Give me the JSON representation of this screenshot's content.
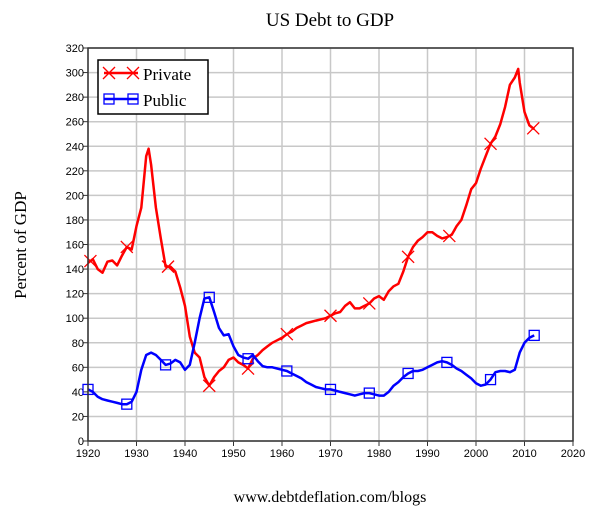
{
  "chart_data": {
    "type": "line",
    "title": "US Debt to GDP",
    "ylabel": "Percent of GDP",
    "xlabel": "www.debtdeflation.com/blogs",
    "xlim": [
      1920,
      2020
    ],
    "ylim": [
      0,
      320
    ],
    "xticks": [
      1920,
      1930,
      1940,
      1950,
      1960,
      1970,
      1980,
      1990,
      2000,
      2010,
      2020
    ],
    "yticks": [
      0,
      20,
      40,
      60,
      80,
      100,
      120,
      140,
      160,
      180,
      200,
      220,
      240,
      260,
      280,
      300,
      320
    ],
    "grid": true,
    "legend_position": "top-left",
    "series": [
      {
        "name": "Private",
        "color": "#ff0000",
        "marker": "x",
        "marker_years": [
          1920.5,
          1928,
          1936.5,
          1945,
          1953,
          1961,
          1970,
          1978,
          1986,
          1994.5,
          2003,
          2011.8
        ],
        "x": [
          1920,
          1921,
          1922,
          1923,
          1924,
          1925,
          1926,
          1927,
          1928,
          1929,
          1930,
          1931,
          1932,
          1932.5,
          1933,
          1934,
          1935,
          1936,
          1937,
          1938,
          1939,
          1940,
          1941,
          1942,
          1943,
          1944,
          1945,
          1946,
          1947,
          1948,
          1949,
          1950,
          1951,
          1952,
          1953,
          1954,
          1955,
          1956,
          1957,
          1958,
          1959,
          1960,
          1961,
          1962,
          1963,
          1964,
          1965,
          1966,
          1967,
          1968,
          1969,
          1970,
          1971,
          1972,
          1973,
          1974,
          1975,
          1976,
          1977,
          1978,
          1979,
          1980,
          1981,
          1982,
          1983,
          1984,
          1985,
          1986,
          1987,
          1988,
          1989,
          1990,
          1991,
          1992,
          1993,
          1994,
          1995,
          1996,
          1997,
          1998,
          1999,
          2000,
          2001,
          2002,
          2003,
          2004,
          2005,
          2006,
          2007,
          2008,
          2008.7,
          2009,
          2010,
          2011,
          2012
        ],
        "y": [
          145,
          148,
          140,
          137,
          146,
          147,
          143,
          151,
          158,
          156,
          175,
          190,
          232,
          238,
          225,
          190,
          165,
          142,
          142,
          138,
          125,
          110,
          85,
          72,
          68,
          52,
          45,
          52,
          57,
          60,
          66,
          68,
          64,
          62,
          59,
          67,
          70,
          74,
          77,
          80,
          82,
          84,
          87,
          89,
          92,
          94,
          96,
          97,
          98,
          99,
          100,
          102,
          104,
          105,
          110,
          113,
          108,
          108,
          110,
          112,
          116,
          118,
          115,
          122,
          126,
          128,
          138,
          150,
          158,
          163,
          166,
          170,
          170,
          167,
          165,
          166,
          168,
          175,
          180,
          192,
          205,
          210,
          222,
          232,
          242,
          248,
          258,
          272,
          290,
          296,
          303,
          292,
          268,
          257,
          254
        ]
      },
      {
        "name": "Public",
        "color": "#0000ff",
        "marker": "square",
        "marker_years": [
          1920,
          1928,
          1936,
          1945,
          1953,
          1961,
          1970,
          1978,
          1986,
          1994,
          2003,
          2012
        ],
        "x": [
          1920,
          1921,
          1922,
          1923,
          1924,
          1925,
          1926,
          1927,
          1928,
          1929,
          1930,
          1931,
          1932,
          1933,
          1934,
          1935,
          1936,
          1937,
          1938,
          1939,
          1940,
          1941,
          1942,
          1943,
          1944,
          1945,
          1946,
          1947,
          1948,
          1949,
          1950,
          1951,
          1952,
          1953,
          1954,
          1955,
          1956,
          1957,
          1958,
          1959,
          1960,
          1961,
          1962,
          1963,
          1964,
          1965,
          1966,
          1967,
          1968,
          1969,
          1970,
          1971,
          1972,
          1973,
          1974,
          1975,
          1976,
          1977,
          1978,
          1979,
          1980,
          1981,
          1982,
          1983,
          1984,
          1985,
          1986,
          1987,
          1988,
          1989,
          1990,
          1991,
          1992,
          1993,
          1994,
          1995,
          1996,
          1997,
          1998,
          1999,
          2000,
          2001,
          2002,
          2003,
          2004,
          2005,
          2006,
          2007,
          2008,
          2009,
          2010,
          2011,
          2012
        ],
        "y": [
          42,
          40,
          36,
          34,
          33,
          32,
          31,
          30,
          30,
          32,
          40,
          58,
          70,
          72,
          70,
          66,
          62,
          63,
          66,
          64,
          58,
          62,
          80,
          100,
          116,
          117,
          105,
          92,
          86,
          87,
          77,
          70,
          68,
          67,
          70,
          65,
          61,
          60,
          60,
          59,
          58,
          57,
          55,
          53,
          51,
          48,
          46,
          44,
          43,
          42,
          42,
          41,
          40,
          39,
          38,
          37,
          38,
          39,
          39,
          38,
          37,
          37,
          40,
          45,
          48,
          52,
          55,
          57,
          57,
          58,
          60,
          62,
          64,
          65,
          64,
          62,
          59,
          57,
          54,
          51,
          47,
          45,
          46,
          50,
          56,
          57,
          57,
          56,
          58,
          72,
          80,
          84,
          86
        ]
      }
    ]
  }
}
